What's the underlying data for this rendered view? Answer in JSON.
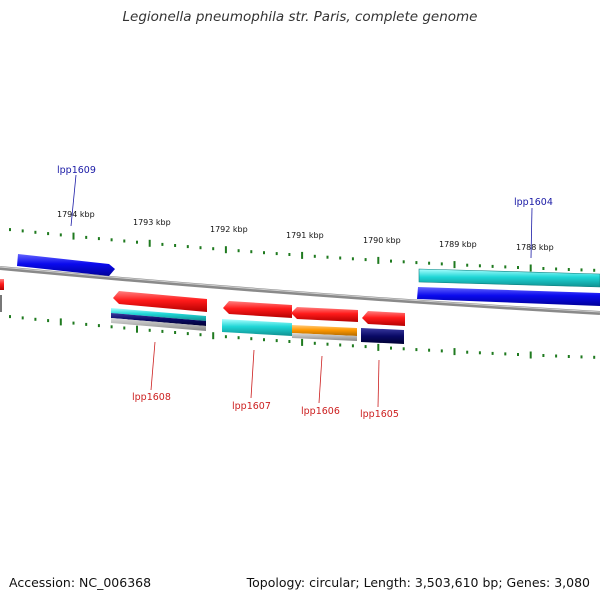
{
  "title": "Legionella pneumophila str. Paris, complete genome",
  "footer": {
    "accession": "Accession: NC_006368",
    "topology": "Topology: circular; Length: 3,503,610 bp; Genes: 3,080"
  },
  "colors": {
    "backbone": "#8c8c8c",
    "ticks": "#1f7a1f",
    "forward_label": "#1a1aa6",
    "reverse_label": "#cc1f1f",
    "gene_red": "#ff1a1a",
    "gene_blue": "#0a0aee",
    "gene_cyan": "#1fd6d6",
    "gene_orange": "#ff9900",
    "gene_navy": "#0a0a66"
  },
  "scale": {
    "labels": [
      "1794 kbp",
      "1793 kbp",
      "1792 kbp",
      "1791 kbp",
      "1790 kbp",
      "1789 kbp",
      "1788 kbp"
    ]
  },
  "gene_labels": {
    "forward": [
      "lpp1609",
      "lpp1604"
    ],
    "reverse": [
      "lpp1608",
      "lpp1607",
      "lpp1606",
      "lpp1605"
    ]
  }
}
